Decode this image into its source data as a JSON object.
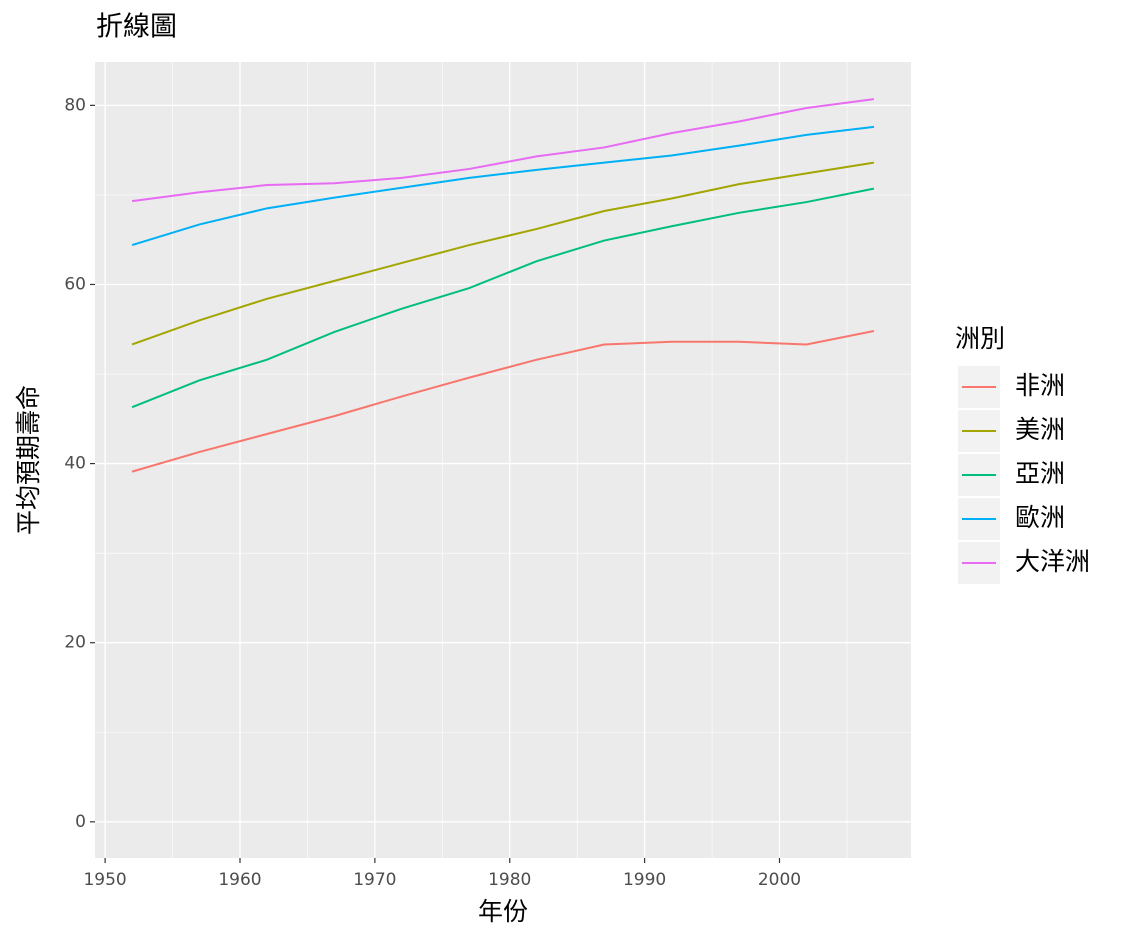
{
  "chart_data": {
    "type": "line",
    "title": "折線圖",
    "x_label": "年份",
    "y_label": "平均預期壽命",
    "legend_title": "洲別",
    "x": [
      1952,
      1957,
      1962,
      1967,
      1972,
      1977,
      1982,
      1987,
      1992,
      1997,
      2002,
      2007
    ],
    "series": [
      {
        "name": "非洲",
        "color": "#F8766D",
        "values": [
          39.1,
          41.3,
          43.3,
          45.3,
          47.5,
          49.6,
          51.6,
          53.3,
          53.6,
          53.6,
          53.3,
          54.8
        ]
      },
      {
        "name": "美洲",
        "color": "#A3A500",
        "values": [
          53.3,
          56.0,
          58.4,
          60.4,
          62.4,
          64.4,
          66.2,
          68.2,
          69.6,
          71.2,
          72.4,
          73.6
        ]
      },
      {
        "name": "亞洲",
        "color": "#00BF7D",
        "values": [
          46.3,
          49.3,
          51.6,
          54.7,
          57.3,
          59.6,
          62.6,
          64.9,
          66.5,
          68.0,
          69.2,
          70.7
        ]
      },
      {
        "name": "歐洲",
        "color": "#00B0F6",
        "values": [
          64.4,
          66.7,
          68.5,
          69.7,
          70.8,
          71.9,
          72.8,
          73.6,
          74.4,
          75.5,
          76.7,
          77.6
        ]
      },
      {
        "name": "大洋洲",
        "color": "#E76BF3",
        "values": [
          69.3,
          70.3,
          71.1,
          71.3,
          71.9,
          72.9,
          74.3,
          75.3,
          76.9,
          78.2,
          79.7,
          80.7
        ]
      }
    ],
    "xlim": [
      1949.25,
      2009.75
    ],
    "xticks": [
      1950,
      1960,
      1970,
      1980,
      1990,
      2000
    ],
    "ylim": [
      -4.04,
      84.84
    ],
    "yticks": [
      0,
      20,
      40,
      60,
      80
    ],
    "grid": true,
    "legend": "right"
  }
}
